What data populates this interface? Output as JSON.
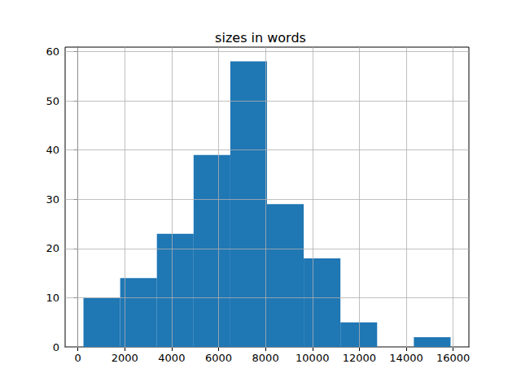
{
  "chart_data": {
    "type": "histogram",
    "title": "sizes in words",
    "bins": [
      240,
      1805,
      3370,
      4935,
      6500,
      8065,
      9630,
      11195,
      12760,
      14325,
      15890
    ],
    "counts": [
      10,
      14,
      23,
      39,
      58,
      29,
      18,
      5,
      0,
      2
    ],
    "color": "#1f77b4",
    "xlim": [
      -542,
      16672
    ],
    "xticks": [
      0,
      2000,
      4000,
      6000,
      8000,
      10000,
      12000,
      14000,
      16000
    ],
    "ylim": [
      0,
      60.9
    ],
    "yticks": [
      0,
      10,
      20,
      30,
      40,
      50,
      60
    ],
    "grid": true
  }
}
